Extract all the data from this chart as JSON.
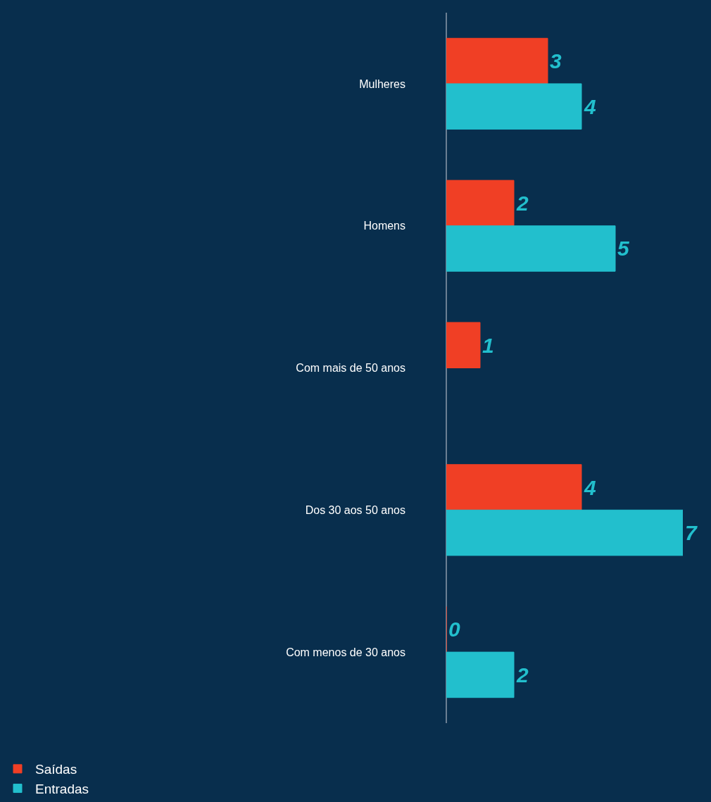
{
  "chart_data": {
    "type": "bar",
    "orientation": "horizontal",
    "categories": [
      "Mulheres",
      "Homens",
      "Com mais de 50 anos",
      "Dos 30 aos 50 anos",
      "Com menos de 30 anos"
    ],
    "series": [
      {
        "name": "Saídas",
        "color": "#f03f25",
        "values": [
          3,
          2,
          1,
          4,
          0
        ]
      },
      {
        "name": "Entradas",
        "color": "#22bfcd",
        "values": [
          4,
          5,
          null,
          7,
          2
        ]
      }
    ],
    "relative": false,
    "data_labels": true,
    "legend": "bottom left",
    "grid": false
  }
}
